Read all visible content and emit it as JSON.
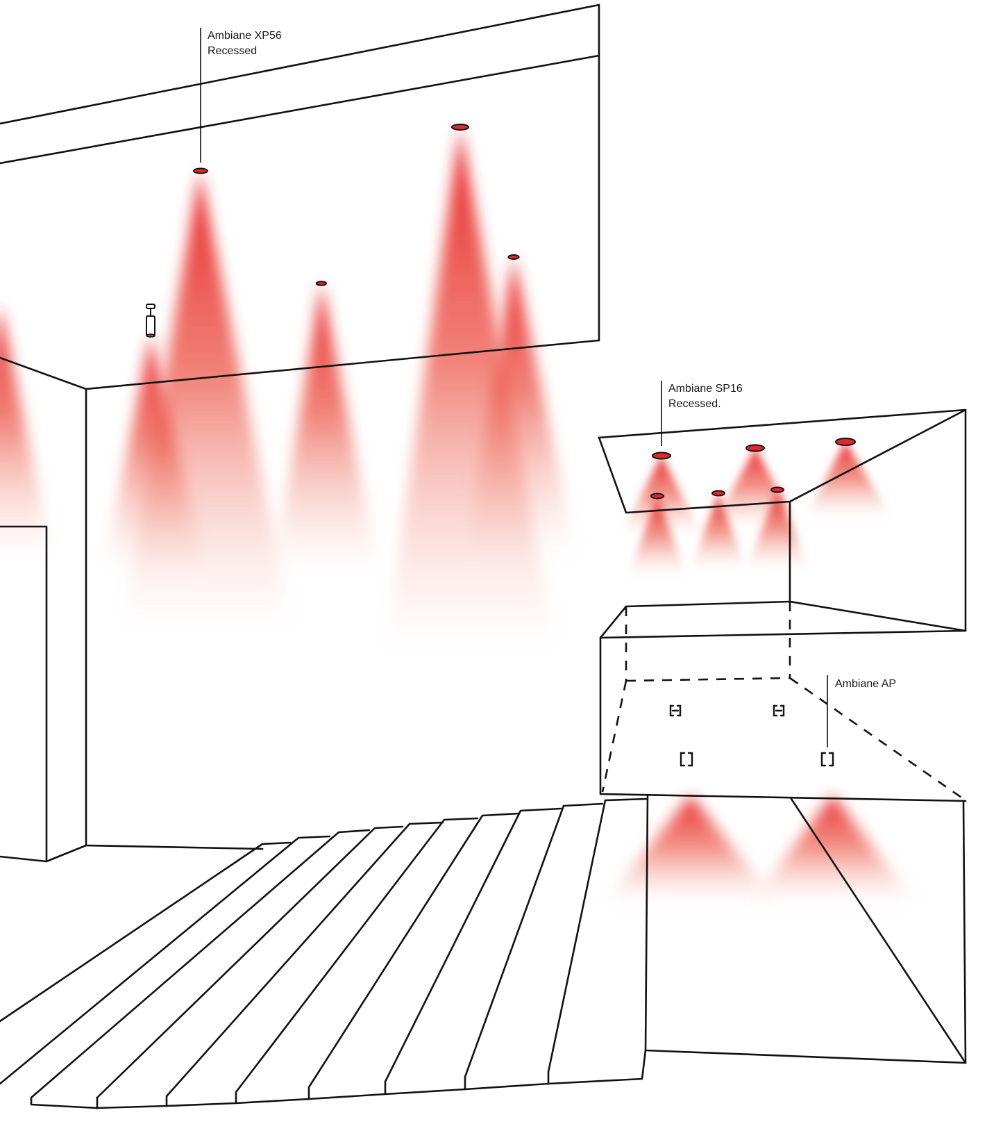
{
  "accent_color": "#e8262b",
  "line_color": "#111111",
  "callouts": {
    "xp56": {
      "line1": "Ambiane XP56",
      "line2": "Recessed"
    },
    "sp16": {
      "line1": "Ambiane SP16",
      "line2": "Recessed."
    },
    "ap": {
      "line1": "Ambiane AP"
    }
  },
  "icons": {
    "beam": "light-beam-icon",
    "fixture": "recessed-fixture-icon",
    "pendant": "pendant-fixture-icon",
    "access_point": "access-point-icon"
  }
}
